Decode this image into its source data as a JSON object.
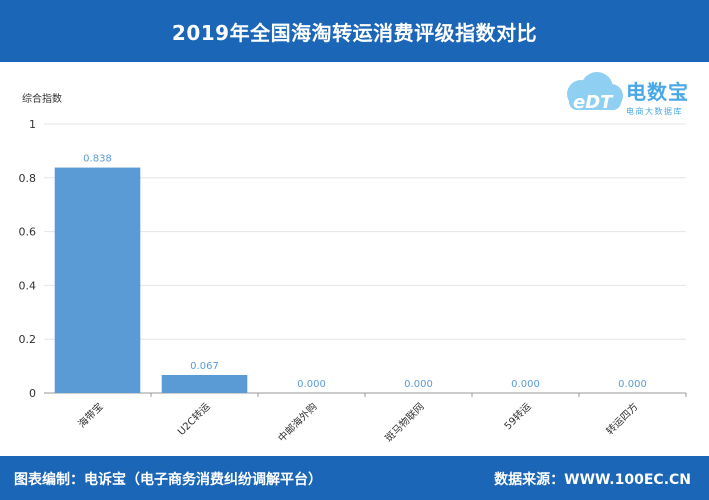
{
  "header": {
    "title": "2019年全国海淘转运消费评级指数对比"
  },
  "footer": {
    "left_text": "图表编制：电诉宝（电子商务消费纠纷调解平台）",
    "right_text": "数据来源：WWW.100EC.CN"
  },
  "logo": {
    "name": "电数宝",
    "subtitle": "电商大数据库"
  },
  "colors": {
    "header_bg": "#1b66b7",
    "bar": "#5b9bd5",
    "label": "#5b9bd5"
  },
  "chart_data": {
    "type": "bar",
    "title": "2019年全国海淘转运消费评级指数对比",
    "ylabel": "综合指数",
    "xlabel": "",
    "ylim": [
      0,
      1
    ],
    "yticks": [
      0,
      0.2,
      0.4,
      0.6,
      0.8,
      1
    ],
    "ytick_labels": [
      "0",
      "0.2",
      "0.4",
      "0.6",
      "0.8",
      "1"
    ],
    "grid": true,
    "categories": [
      "海带宝",
      "U2C转运",
      "中邮海外购",
      "斑马物联网",
      "59转运",
      "转运四方"
    ],
    "values": [
      0.838,
      0.067,
      0.0,
      0.0,
      0.0,
      0.0
    ],
    "value_labels": [
      "0.838",
      "0.067",
      "0.000",
      "0.000",
      "0.000",
      "0.000"
    ]
  }
}
